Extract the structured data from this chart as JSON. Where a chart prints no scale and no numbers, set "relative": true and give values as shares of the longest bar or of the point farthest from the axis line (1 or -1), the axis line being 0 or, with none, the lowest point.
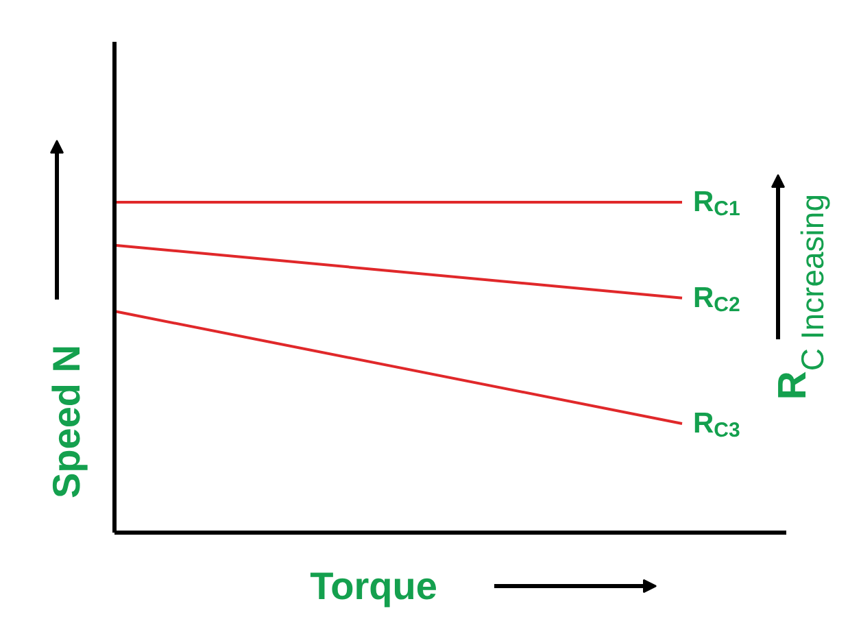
{
  "chart_data": {
    "type": "line",
    "relative": true,
    "categories": [
      null,
      null
    ],
    "xlabel": "Torque",
    "ylabel": "Speed N",
    "annotations": [
      "R$_{C}$ Increasing"
    ],
    "series": [
      {
        "name": "R$_{C1}$",
        "color": "#e0282a",
        "values": [
          1,
          1
        ]
      },
      {
        "name": "R$_{C2}$",
        "color": "#e0282a",
        "values": [
          0.87,
          0.71
        ]
      },
      {
        "name": "R$_{C3}$",
        "color": "#e0282a",
        "values": [
          0.67,
          0.33
        ]
      }
    ]
  }
}
